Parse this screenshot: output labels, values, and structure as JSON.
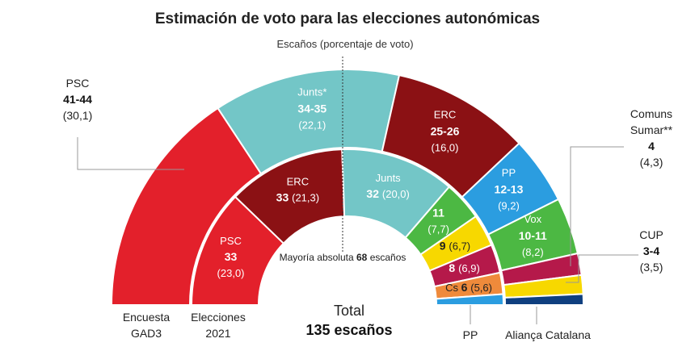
{
  "chart_data": {
    "type": "semicircle-parliament",
    "title": "Estimación de voto para las elecciones autonómicas",
    "subtitle": "Escaños (porcentaje de voto)",
    "total_label": "Total",
    "total_value": "135 escaños",
    "majority_note": "Mayoría absoluta",
    "majority_seats": "68",
    "majority_unit": "escaños",
    "rings": [
      {
        "name": "Encuesta GAD3",
        "label_lines": [
          "Encuesta",
          "GAD3"
        ],
        "segments": [
          {
            "party": "PSC",
            "seats": "41-44",
            "vote": "(30,1)",
            "seats_mid": 42.5,
            "color": "#e3202b"
          },
          {
            "party": "Junts*",
            "seats": "34-35",
            "vote": "(22,1)",
            "seats_mid": 34.5,
            "color": "#73c6c7"
          },
          {
            "party": "ERC",
            "seats": "25-26",
            "vote": "(16,0)",
            "seats_mid": 25.5,
            "color": "#8b1114"
          },
          {
            "party": "PP",
            "seats": "12-13",
            "vote": "(9,2)",
            "seats_mid": 12.5,
            "color": "#2b9de0"
          },
          {
            "party": "Vox",
            "seats": "10-11",
            "vote": "(8,2)",
            "seats_mid": 10.5,
            "color": "#4cb843"
          },
          {
            "party": "Comuns Sumar**",
            "seats": "4",
            "vote": "(4,3)",
            "seats_mid": 4,
            "color": "#b5194a"
          },
          {
            "party": "CUP",
            "seats": "3-4",
            "vote": "(3,5)",
            "seats_mid": 3.5,
            "color": "#f7d800"
          },
          {
            "party": "Aliança Catalana",
            "seats": "",
            "vote": "",
            "seats_mid": 2,
            "color": "#0f3f7f"
          }
        ]
      },
      {
        "name": "Elecciones 2021",
        "label_lines": [
          "Elecciones",
          "2021"
        ],
        "segments": [
          {
            "party": "PSC",
            "seats": "33",
            "vote": "(23,0)",
            "seats_mid": 33,
            "color": "#e3202b"
          },
          {
            "party": "ERC",
            "seats": "33",
            "vote": "(21,3)",
            "seats_mid": 33,
            "color": "#8b1114"
          },
          {
            "party": "Junts",
            "seats": "32",
            "vote": "(20,0)",
            "seats_mid": 32,
            "color": "#73c6c7"
          },
          {
            "party": "",
            "seats": "11",
            "vote": "(7,7)",
            "seats_mid": 11,
            "color": "#4cb843"
          },
          {
            "party": "",
            "seats": "9",
            "vote": "(6,7)",
            "seats_mid": 9,
            "color": "#f7d800"
          },
          {
            "party": "",
            "seats": "8",
            "vote": "(6,9)",
            "seats_mid": 8,
            "color": "#b5194a"
          },
          {
            "party": "Cs",
            "seats": "6",
            "vote": "(5,6)",
            "seats_mid": 6,
            "color": "#ef8a3b"
          },
          {
            "party": "PP",
            "seats": "3",
            "vote": "",
            "seats_mid": 3,
            "color": "#2b9de0"
          }
        ]
      }
    ]
  },
  "colors": {
    "divider": "#ffffff",
    "leader_line": "#999999",
    "majority_line": "#333333"
  }
}
